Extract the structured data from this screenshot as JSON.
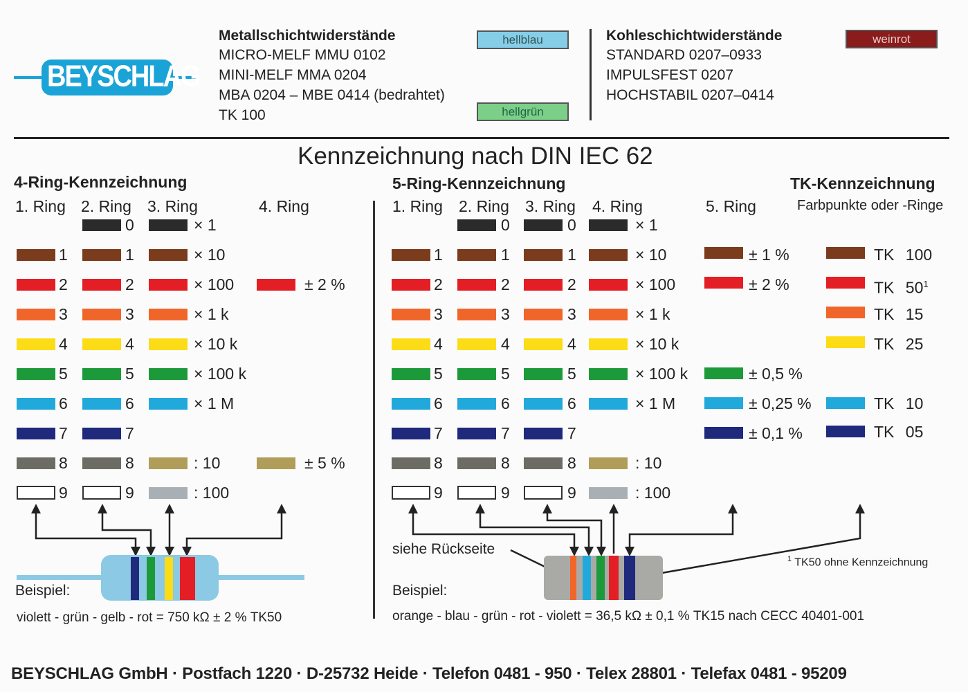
{
  "logo": {
    "text": "BEYSCHLAG"
  },
  "top": {
    "metall": {
      "title": "Metallschichtwiderstände",
      "lines": [
        "MICRO-MELF MMU 0102",
        "MINI-MELF MMA 0204",
        "MBA 0204 – MBE 0414 (bedrahtet)",
        "TK 100"
      ],
      "tag1": "hellblau",
      "tag2": "hellgrün"
    },
    "kohle": {
      "title": "Kohleschichtwiderstände",
      "lines": [
        "STANDARD 0207–0933",
        "IMPULSFEST 0207",
        "HOCHSTABIL 0207–0414"
      ],
      "tag": "weinrot"
    }
  },
  "colors": {
    "black": "#2b2b2b",
    "brown": "#7a3c1d",
    "red": "#e31e24",
    "orange": "#f0662a",
    "yellow": "#fbdc16",
    "green": "#1c9a3a",
    "blue": "#22a9dc",
    "violet": "#1f2a7c",
    "grey": "#6c6c64",
    "white": "#ffffff",
    "gold": "#b19d5a",
    "silver": "#a8b0b6",
    "hellblau": "#86cde8",
    "hellgruen": "#7ccf88",
    "weinrot": "#8a1c1c",
    "body": "#8cc9e4"
  },
  "main": {
    "title": "Kennzeichnung nach DIN IEC 62",
    "four_ring": {
      "title": "4-Ring-Kennzeichnung",
      "cols": [
        "1. Ring",
        "2. Ring",
        "3. Ring",
        "4. Ring"
      ],
      "digits1": [
        "1",
        "2",
        "3",
        "4",
        "5",
        "6",
        "7",
        "8",
        "9"
      ],
      "digits2": [
        "0",
        "1",
        "2",
        "3",
        "4",
        "5",
        "6",
        "7",
        "8",
        "9"
      ],
      "multipliers": [
        "× 1",
        "× 10",
        "× 100",
        "× 1 k",
        "× 10 k",
        "× 100 k",
        "× 1 M",
        ": 10",
        ": 100"
      ],
      "tol": [
        "± 2 %",
        "± 5 %"
      ],
      "example_label": "Beispiel:",
      "example_text": "violett - grün - gelb - rot = 750 kΩ ± 2 % TK50"
    },
    "five_ring": {
      "title": "5-Ring-Kennzeichnung",
      "cols": [
        "1. Ring",
        "2. Ring",
        "3. Ring",
        "4. Ring",
        "5. Ring"
      ],
      "digits1": [
        "1",
        "2",
        "3",
        "4",
        "5",
        "6",
        "7",
        "8",
        "9"
      ],
      "digits2": [
        "0",
        "1",
        "2",
        "3",
        "4",
        "5",
        "6",
        "7",
        "8",
        "9"
      ],
      "digits3": [
        "0",
        "1",
        "2",
        "3",
        "4",
        "5",
        "6",
        "7",
        "8",
        "9"
      ],
      "multipliers": [
        "× 1",
        "× 10",
        "× 100",
        "× 1 k",
        "× 10 k",
        "× 100 k",
        "× 1 M",
        ": 10",
        ": 100"
      ],
      "tol": [
        "± 1 %",
        "± 2 %",
        "± 0,5 %",
        "± 0,25 %",
        "± 0,1 %"
      ],
      "see_back": "siehe Rückseite",
      "example_label": "Beispiel:",
      "example_text": "orange - blau - grün - rot - violett = 36,5 kΩ ± 0,1 % TK15 nach CECC 40401-001"
    },
    "tk": {
      "title": "TK-Kennzeichnung",
      "subtitle": "Farbpunkte oder -Ringe",
      "values": [
        "TK 100",
        "TK 50",
        "TK 15",
        "TK 25",
        "TK 10",
        "TK 05"
      ],
      "footnote_mark": "1",
      "footnote": "TK50 ohne Kennzeichnung"
    }
  },
  "footer": "BEYSCHLAG GmbH · Postfach 1220 · D-25732 Heide · Telefon 0481 - 950 · Telex 28801 · Telefax 0481 - 95209"
}
